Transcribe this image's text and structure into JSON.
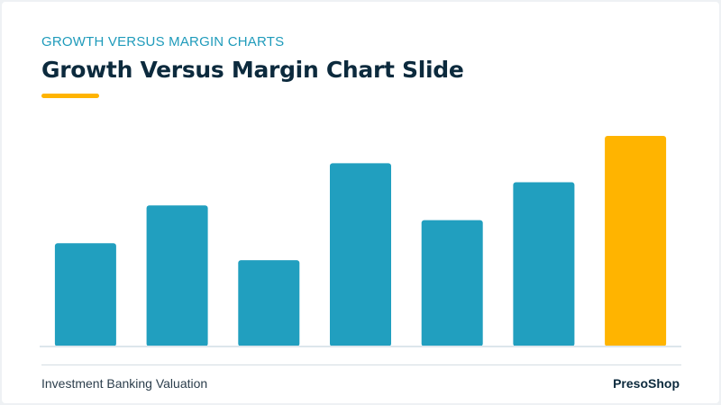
{
  "slide": {
    "kicker": "GROWTH VERSUS MARGIN CHARTS",
    "title": "Growth Versus Margin Chart Slide",
    "footer_left": "Investment Banking Valuation",
    "footer_right": "PresoShop"
  },
  "colors": {
    "primary_bar": "#219fbf",
    "highlight_bar": "#ffb400",
    "baseline": "#dde6ec",
    "title": "#0c2a3d",
    "kicker": "#1f9bbb"
  },
  "chart_data": {
    "type": "bar",
    "values": [
      49,
      67,
      41,
      87,
      60,
      78,
      100
    ],
    "highlight_index": 6,
    "ylim": [
      0,
      100
    ],
    "grid": false,
    "legend": "none",
    "title": "",
    "xlabel": "",
    "ylabel": ""
  }
}
